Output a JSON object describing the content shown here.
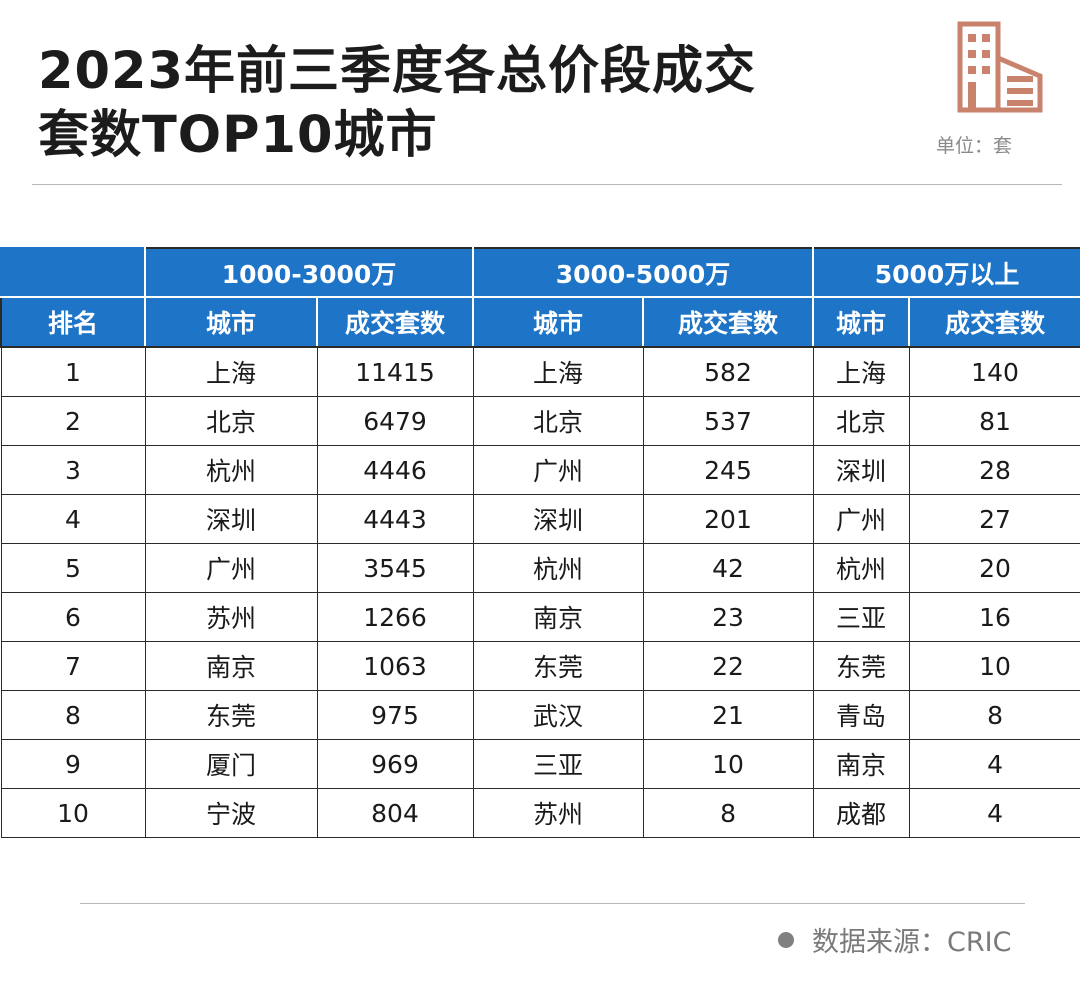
{
  "title": {
    "line1": "2023年前三季度各总价段成交",
    "line2": "套数TOP10城市"
  },
  "unit_label": "单位：套",
  "icon": {
    "name": "building-icon",
    "color": "#c9836c"
  },
  "table": {
    "price_bands": [
      "1000-3000万",
      "3000-5000万",
      "5000万以上"
    ],
    "columns": [
      "排名",
      "城市",
      "成交套数",
      "城市",
      "成交套数",
      "城市",
      "成交套数"
    ],
    "rows": [
      [
        "1",
        "上海",
        "11415",
        "上海",
        "582",
        "上海",
        "140"
      ],
      [
        "2",
        "北京",
        "6479",
        "北京",
        "537",
        "北京",
        "81"
      ],
      [
        "3",
        "杭州",
        "4446",
        "广州",
        "245",
        "深圳",
        "28"
      ],
      [
        "4",
        "深圳",
        "4443",
        "深圳",
        "201",
        "广州",
        "27"
      ],
      [
        "5",
        "广州",
        "3545",
        "杭州",
        "42",
        "杭州",
        "20"
      ],
      [
        "6",
        "苏州",
        "1266",
        "南京",
        "23",
        "三亚",
        "16"
      ],
      [
        "7",
        "南京",
        "1063",
        "东莞",
        "22",
        "东莞",
        "10"
      ],
      [
        "8",
        "东莞",
        "975",
        "武汉",
        "21",
        "青岛",
        "8"
      ],
      [
        "9",
        "厦门",
        "969",
        "三亚",
        "10",
        "南京",
        "4"
      ],
      [
        "10",
        "宁波",
        "804",
        "苏州",
        "8",
        "成都",
        "4"
      ]
    ],
    "header_color": "#1e74c6"
  },
  "source": "数据来源：CRIC"
}
